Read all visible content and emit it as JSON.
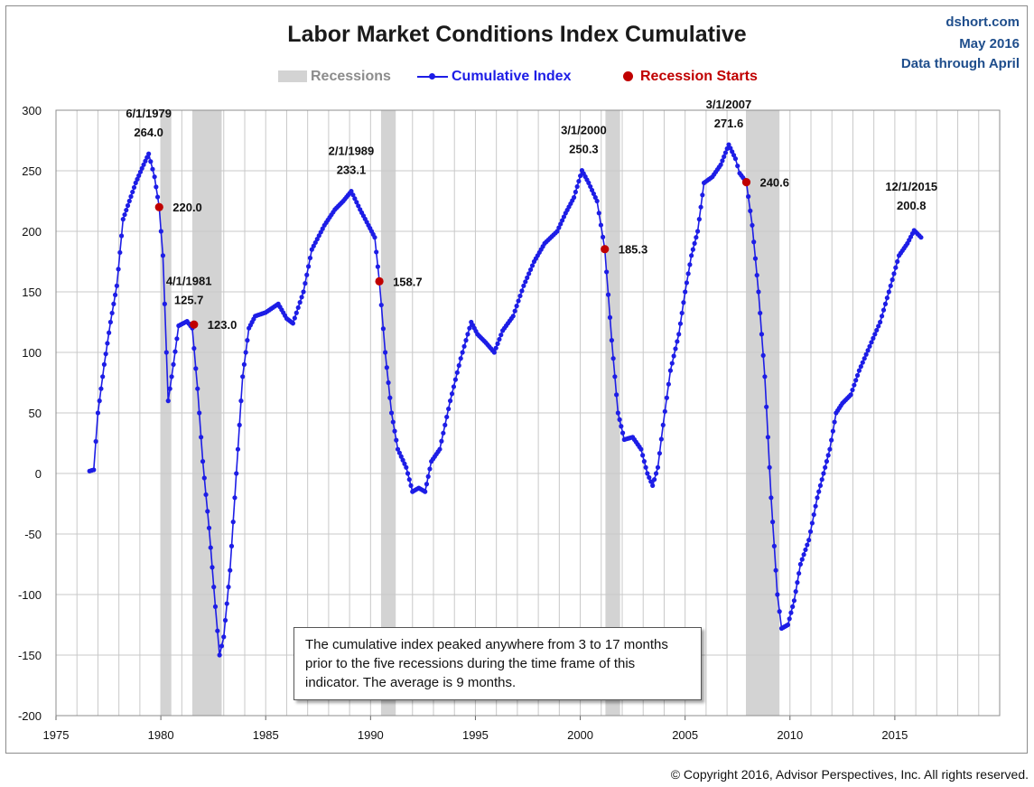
{
  "header": {
    "title": "Labor Market Conditions Index Cumulative",
    "brand": [
      "dshort.com",
      "May 2016",
      "Data through April"
    ]
  },
  "legend": {
    "recessions": "Recessions",
    "cumulative": "Cumulative Index",
    "recession_starts": "Recession Starts"
  },
  "annotation": "The cumulative index peaked anywhere from 3 to 17 months prior to the five recessions during the time frame of this indicator. The average is 9 months.",
  "copyright": "© Copyright 2016, Advisor Perspectives, Inc. All rights reserved.",
  "colors": {
    "line": "#1d1de6",
    "start": "#c00000",
    "recession": "#d3d3d3",
    "grid": "#c8c8c8"
  },
  "chart_data": {
    "type": "line",
    "title": "Labor Market Conditions Index Cumulative",
    "xlim": [
      1975,
      2020
    ],
    "ylim": [
      -200,
      300
    ],
    "x_ticks": [
      "1975",
      "1980",
      "1985",
      "1990",
      "1995",
      "2000",
      "2005",
      "2010",
      "2015"
    ],
    "y_ticks": [
      "300",
      "250",
      "200",
      "150",
      "100",
      "50",
      "0",
      "-50",
      "-100",
      "-150",
      "-200"
    ],
    "grid": true,
    "legend_position": "top-center",
    "recessions": [
      [
        1980.0,
        1980.5
      ],
      [
        1981.5,
        1982.9
      ],
      [
        1990.5,
        1991.2
      ],
      [
        2001.2,
        2001.9
      ],
      [
        2007.9,
        2009.5
      ]
    ],
    "series": [
      {
        "name": "Cumulative Index",
        "anchors": [
          [
            1976.6,
            2
          ],
          [
            1976.8,
            3
          ],
          [
            1977.0,
            50
          ],
          [
            1977.3,
            90
          ],
          [
            1977.6,
            125
          ],
          [
            1977.9,
            155
          ],
          [
            1978.2,
            210
          ],
          [
            1978.5,
            225
          ],
          [
            1978.8,
            240
          ],
          [
            1979.1,
            252
          ],
          [
            1979.42,
            264
          ],
          [
            1979.7,
            245
          ],
          [
            1979.92,
            220
          ],
          [
            1980.1,
            180
          ],
          [
            1980.35,
            60
          ],
          [
            1980.6,
            90
          ],
          [
            1980.85,
            122
          ],
          [
            1981.25,
            125.7
          ],
          [
            1981.5,
            120
          ],
          [
            1981.75,
            70
          ],
          [
            1982.0,
            10
          ],
          [
            1982.3,
            -45
          ],
          [
            1982.6,
            -110
          ],
          [
            1982.8,
            -150
          ],
          [
            1983.0,
            -135
          ],
          [
            1983.3,
            -80
          ],
          [
            1983.6,
            0
          ],
          [
            1983.9,
            80
          ],
          [
            1984.2,
            120
          ],
          [
            1984.5,
            130
          ],
          [
            1985.0,
            133
          ],
          [
            1985.6,
            140
          ],
          [
            1986.0,
            128
          ],
          [
            1986.3,
            124
          ],
          [
            1986.8,
            150
          ],
          [
            1987.2,
            185
          ],
          [
            1987.8,
            205
          ],
          [
            1988.3,
            218
          ],
          [
            1988.7,
            225
          ],
          [
            1989.08,
            233.1
          ],
          [
            1989.5,
            218
          ],
          [
            1989.9,
            205
          ],
          [
            1990.2,
            195
          ],
          [
            1990.42,
            158.7
          ],
          [
            1990.7,
            100
          ],
          [
            1991.0,
            50
          ],
          [
            1991.3,
            20
          ],
          [
            1991.7,
            5
          ],
          [
            1992.0,
            -15
          ],
          [
            1992.3,
            -12
          ],
          [
            1992.6,
            -15
          ],
          [
            1992.9,
            10
          ],
          [
            1993.3,
            20
          ],
          [
            1993.8,
            60
          ],
          [
            1994.3,
            95
          ],
          [
            1994.8,
            125
          ],
          [
            1995.1,
            115
          ],
          [
            1995.5,
            108
          ],
          [
            1995.9,
            100
          ],
          [
            1996.3,
            118
          ],
          [
            1996.8,
            130
          ],
          [
            1997.3,
            155
          ],
          [
            1997.8,
            175
          ],
          [
            1998.3,
            190
          ],
          [
            1998.9,
            200
          ],
          [
            1999.3,
            215
          ],
          [
            1999.7,
            228
          ],
          [
            2000.08,
            250.3
          ],
          [
            2000.4,
            240
          ],
          [
            2000.8,
            225
          ],
          [
            2001.17,
            185.3
          ],
          [
            2001.5,
            110
          ],
          [
            2001.8,
            50
          ],
          [
            2002.1,
            28
          ],
          [
            2002.5,
            30
          ],
          [
            2002.9,
            20
          ],
          [
            2003.2,
            0
          ],
          [
            2003.45,
            -10
          ],
          [
            2003.7,
            5
          ],
          [
            2003.95,
            40
          ],
          [
            2004.3,
            85
          ],
          [
            2004.7,
            115
          ],
          [
            2005.0,
            150
          ],
          [
            2005.3,
            180
          ],
          [
            2005.6,
            200
          ],
          [
            2005.9,
            240
          ],
          [
            2006.3,
            245
          ],
          [
            2006.7,
            255
          ],
          [
            2007.08,
            271.6
          ],
          [
            2007.4,
            260
          ],
          [
            2007.6,
            248
          ],
          [
            2007.92,
            240.6
          ],
          [
            2008.2,
            205
          ],
          [
            2008.5,
            150
          ],
          [
            2008.8,
            80
          ],
          [
            2009.1,
            -20
          ],
          [
            2009.4,
            -100
          ],
          [
            2009.6,
            -128
          ],
          [
            2009.9,
            -125
          ],
          [
            2010.2,
            -105
          ],
          [
            2010.5,
            -75
          ],
          [
            2010.9,
            -55
          ],
          [
            2011.3,
            -20
          ],
          [
            2011.6,
            0
          ],
          [
            2011.9,
            20
          ],
          [
            2012.2,
            50
          ],
          [
            2012.5,
            58
          ],
          [
            2012.9,
            65
          ],
          [
            2013.3,
            85
          ],
          [
            2013.8,
            105
          ],
          [
            2014.3,
            125
          ],
          [
            2014.8,
            155
          ],
          [
            2015.2,
            180
          ],
          [
            2015.6,
            190
          ],
          [
            2015.92,
            200.8
          ],
          [
            2016.25,
            195
          ]
        ]
      }
    ],
    "recession_starts": [
      {
        "x": 1979.92,
        "y": 220.0,
        "label": "220.0"
      },
      {
        "x": 1981.58,
        "y": 123.0,
        "label": "123.0"
      },
      {
        "x": 1990.42,
        "y": 158.7,
        "label": "158.7"
      },
      {
        "x": 2001.17,
        "y": 185.3,
        "label": "185.3"
      },
      {
        "x": 2007.92,
        "y": 240.6,
        "label": "240.6"
      }
    ],
    "peaks": [
      {
        "x": 1979.42,
        "y": 264.0,
        "date": "6/1/1979",
        "value": "264.0"
      },
      {
        "x": 1981.25,
        "y": 125.7,
        "date": "4/1/1981",
        "value": "125.7"
      },
      {
        "x": 1989.08,
        "y": 233.1,
        "date": "2/1/1989",
        "value": "233.1"
      },
      {
        "x": 2000.08,
        "y": 250.3,
        "date": "3/1/2000",
        "value": "250.3"
      },
      {
        "x": 2007.08,
        "y": 271.6,
        "date": "3/1/2007",
        "value": "271.6"
      },
      {
        "x": 2015.92,
        "y": 200.8,
        "date": "12/1/2015",
        "value": "200.8"
      }
    ]
  }
}
